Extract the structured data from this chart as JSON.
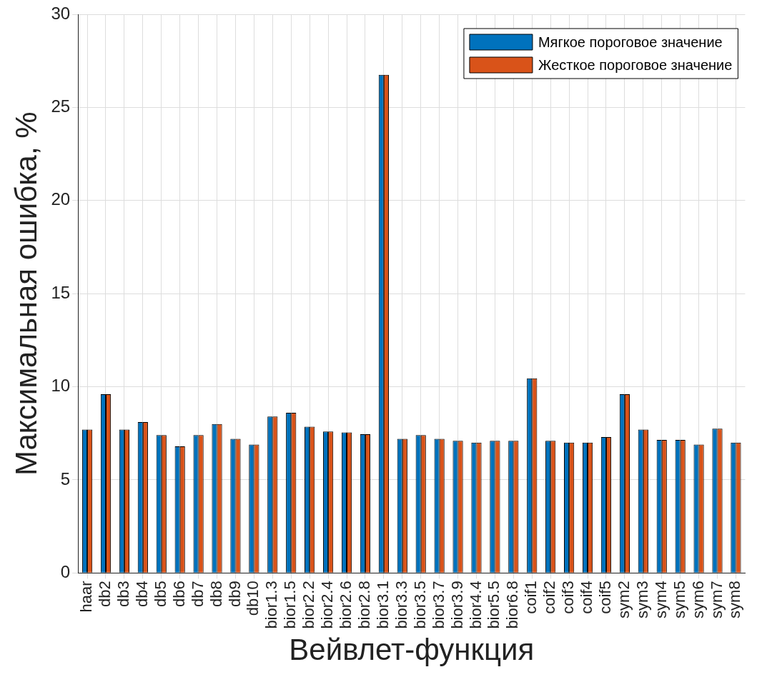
{
  "chart_data": {
    "type": "bar",
    "xlabel": "Вейвлет-функция",
    "ylabel": "Максимальная ошибка, %",
    "categories": [
      "haar",
      "db2",
      "db3",
      "db4",
      "db5",
      "db6",
      "db7",
      "db8",
      "db9",
      "db10",
      "bior1.3",
      "bior1.5",
      "bior2.2",
      "bior2.4",
      "bior2.6",
      "bior2.8",
      "bior3.1",
      "bior3.3",
      "bior3.5",
      "bior3.7",
      "bior3.9",
      "bior4.4",
      "bior5.5",
      "bior6.8",
      "coif1",
      "coif2",
      "coif3",
      "coif4",
      "coif5",
      "sym2",
      "sym3",
      "sym4",
      "sym5",
      "sym6",
      "sym7",
      "sym8"
    ],
    "series": [
      {
        "name": "Мягкое пороговое значение",
        "color": "#0072bd",
        "values": [
          7.7,
          9.6,
          7.7,
          8.1,
          7.4,
          6.8,
          7.4,
          8.0,
          7.2,
          6.9,
          8.4,
          8.6,
          7.85,
          7.6,
          7.55,
          7.45,
          26.75,
          7.2,
          7.4,
          7.2,
          7.1,
          7.0,
          7.1,
          7.1,
          10.45,
          7.1,
          7.0,
          7.0,
          7.3,
          9.6,
          7.7,
          7.15,
          7.15,
          6.9,
          7.75,
          7.0
        ]
      },
      {
        "name": "Жесткое пороговое значение",
        "color": "#d95319",
        "values": [
          7.7,
          9.6,
          7.7,
          8.1,
          7.4,
          6.8,
          7.4,
          8.0,
          7.2,
          6.9,
          8.4,
          8.6,
          7.85,
          7.6,
          7.55,
          7.45,
          26.75,
          7.2,
          7.4,
          7.2,
          7.1,
          7.0,
          7.1,
          7.1,
          10.45,
          7.1,
          7.0,
          7.0,
          7.3,
          9.6,
          7.7,
          7.15,
          7.15,
          6.9,
          7.75,
          7.0
        ]
      }
    ],
    "ylim": [
      0,
      30
    ],
    "yticks": [
      0,
      5,
      10,
      15,
      20,
      25,
      30
    ],
    "grid": true,
    "legend": "top right"
  }
}
